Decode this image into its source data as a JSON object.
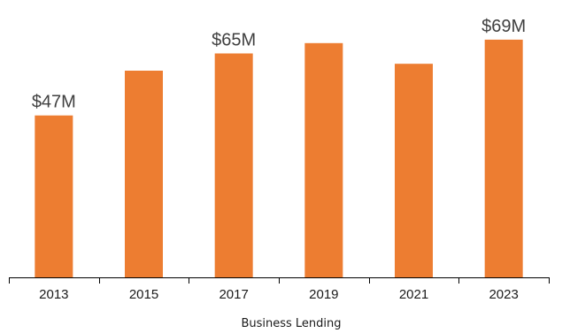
{
  "chart_data": {
    "type": "bar",
    "categories": [
      "2013",
      "2015",
      "2017",
      "2019",
      "2021",
      "2023"
    ],
    "values": [
      47,
      60,
      65,
      68,
      62,
      69
    ],
    "data_labels": [
      "$47M",
      "",
      "$65M",
      "",
      "",
      "$69M"
    ],
    "xlabel": "Business Lending",
    "ylabel": "",
    "ylim": [
      0,
      80
    ],
    "grid": false,
    "bar_color": "#ED7D31"
  }
}
